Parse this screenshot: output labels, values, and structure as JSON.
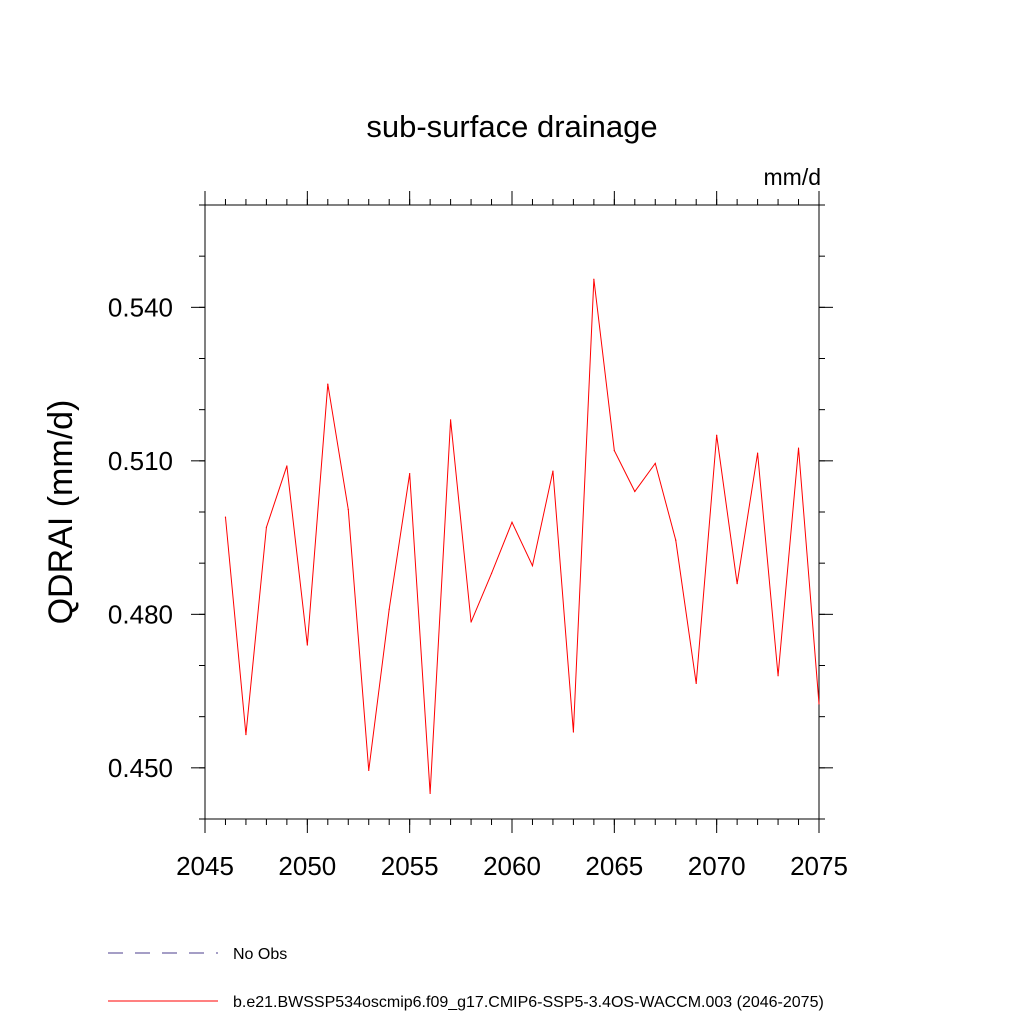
{
  "chart_data": {
    "type": "line",
    "title": "sub-surface drainage",
    "units_label": "mm/d",
    "ylabel": "QDRAI  (mm/d)",
    "xlabel": "",
    "xlim": [
      2045,
      2075
    ],
    "ylim": [
      0.44,
      0.56
    ],
    "x_ticks": [
      2045,
      2050,
      2055,
      2060,
      2065,
      2070,
      2075
    ],
    "y_ticks": [
      0.45,
      0.48,
      0.51,
      0.54
    ],
    "y_tick_labels": [
      "0.450",
      "0.480",
      "0.510",
      "0.540"
    ],
    "x_minor_step": 1,
    "y_minor_step": 0.01,
    "grid": false,
    "series": [
      {
        "name": "b.e21.BWSSP534oscmip6.f09_g17.CMIP6-SSP5-3.4OS-WACCM.003 (2046-2075)",
        "color": "#ff0000",
        "x": [
          2046,
          2047,
          2048,
          2049,
          2050,
          2051,
          2052,
          2053,
          2054,
          2055,
          2056,
          2057,
          2058,
          2059,
          2060,
          2061,
          2062,
          2063,
          2064,
          2065,
          2066,
          2067,
          2068,
          2069,
          2070,
          2071,
          2072,
          2073,
          2074,
          2075
        ],
        "values": [
          0.499,
          0.4565,
          0.497,
          0.509,
          0.474,
          0.525,
          0.5005,
          0.4495,
          0.481,
          0.5075,
          0.445,
          0.518,
          0.4785,
          0.488,
          0.498,
          0.4895,
          0.508,
          0.457,
          0.5455,
          0.512,
          0.504,
          0.5095,
          0.4945,
          0.4665,
          0.515,
          0.486,
          0.5115,
          0.468,
          0.5125,
          0.4625
        ]
      }
    ],
    "legend": {
      "placement": "bottom",
      "entries": [
        {
          "label": "No Obs",
          "color": "#4b3c8c",
          "style": "dashed"
        },
        {
          "label": "b.e21.BWSSP534oscmip6.f09_g17.CMIP6-SSP5-3.4OS-WACCM.003 (2046-2075)",
          "color": "#ff0000",
          "style": "solid"
        }
      ]
    }
  }
}
